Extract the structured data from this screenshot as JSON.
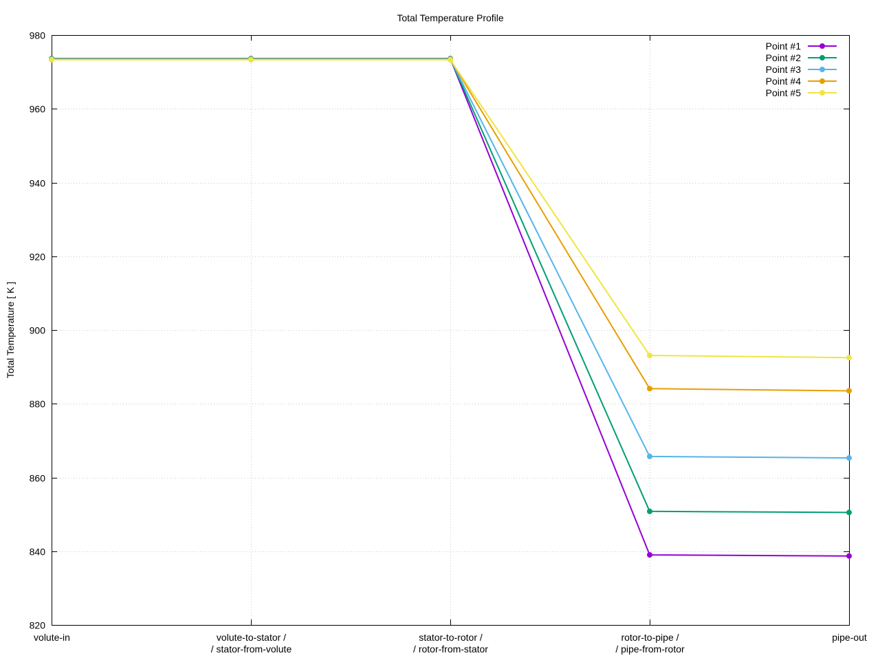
{
  "chart_data": {
    "type": "line",
    "title": "Total Temperature Profile",
    "xlabel": "",
    "ylabel": "Total Temperature [ K ]",
    "ylim": [
      820,
      980
    ],
    "yticks": [
      820,
      840,
      860,
      880,
      900,
      920,
      940,
      960,
      980
    ],
    "categories": [
      [
        "volute-in"
      ],
      [
        "volute-to-stator /",
        "/ stator-from-volute"
      ],
      [
        "stator-to-rotor /",
        "/ rotor-from-stator"
      ],
      [
        "rotor-to-pipe /",
        "/ pipe-from-rotor"
      ],
      [
        "pipe-out"
      ]
    ],
    "grid": true,
    "legend_position": "top-right",
    "series": [
      {
        "name": "Point #1",
        "color": "#9400d3",
        "values": [
          973.6,
          973.6,
          973.6,
          839.0,
          838.7
        ]
      },
      {
        "name": "Point #2",
        "color": "#009e73",
        "values": [
          973.6,
          973.6,
          973.6,
          850.8,
          850.5
        ]
      },
      {
        "name": "Point #3",
        "color": "#56b4e9",
        "values": [
          973.5,
          973.5,
          973.5,
          865.7,
          865.3
        ]
      },
      {
        "name": "Point #4",
        "color": "#e69f00",
        "values": [
          973.4,
          973.4,
          973.4,
          884.1,
          883.5
        ]
      },
      {
        "name": "Point #5",
        "color": "#f0e442",
        "values": [
          973.3,
          973.3,
          973.3,
          893.1,
          892.5
        ]
      }
    ]
  }
}
